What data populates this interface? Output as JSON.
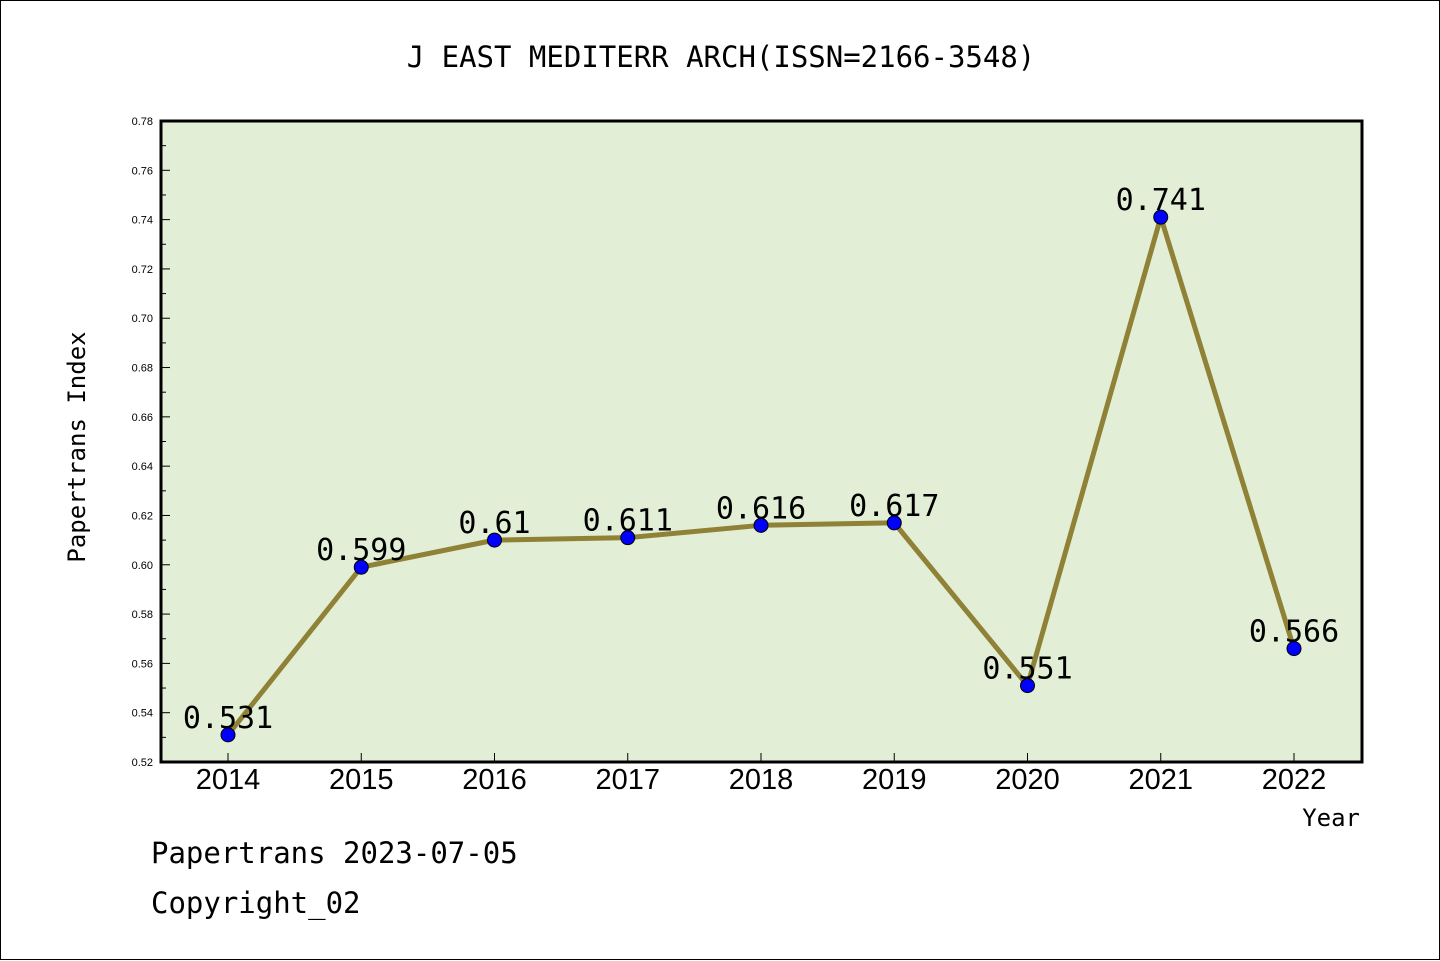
{
  "chart_data": {
    "type": "line",
    "title": "J EAST MEDITERR ARCH(ISSN=2166-3548)",
    "xlabel": "Year",
    "ylabel": "Papertrans Index",
    "categories": [
      "2014",
      "2015",
      "2016",
      "2017",
      "2018",
      "2019",
      "2020",
      "2021",
      "2022"
    ],
    "values": [
      0.531,
      0.599,
      0.61,
      0.611,
      0.616,
      0.617,
      0.551,
      0.741,
      0.566
    ],
    "data_labels": [
      "0.531",
      "0.599",
      "0.61",
      "0.611",
      "0.616",
      "0.617",
      "0.551",
      "0.741",
      "0.566"
    ],
    "ylim": [
      0.52,
      0.78
    ],
    "yticks": [
      "0.52",
      "0.54",
      "0.56",
      "0.58",
      "0.60",
      "0.62",
      "0.64",
      "0.66",
      "0.68",
      "0.70",
      "0.72",
      "0.74",
      "0.76",
      "0.78"
    ],
    "grid": false,
    "colors": {
      "plot_background": "#e2efd6",
      "line": "#8f8136",
      "marker": "#0000ff"
    }
  },
  "footer": {
    "date_line": "Papertrans 2023-07-05",
    "copyright": "Copyright_02"
  }
}
